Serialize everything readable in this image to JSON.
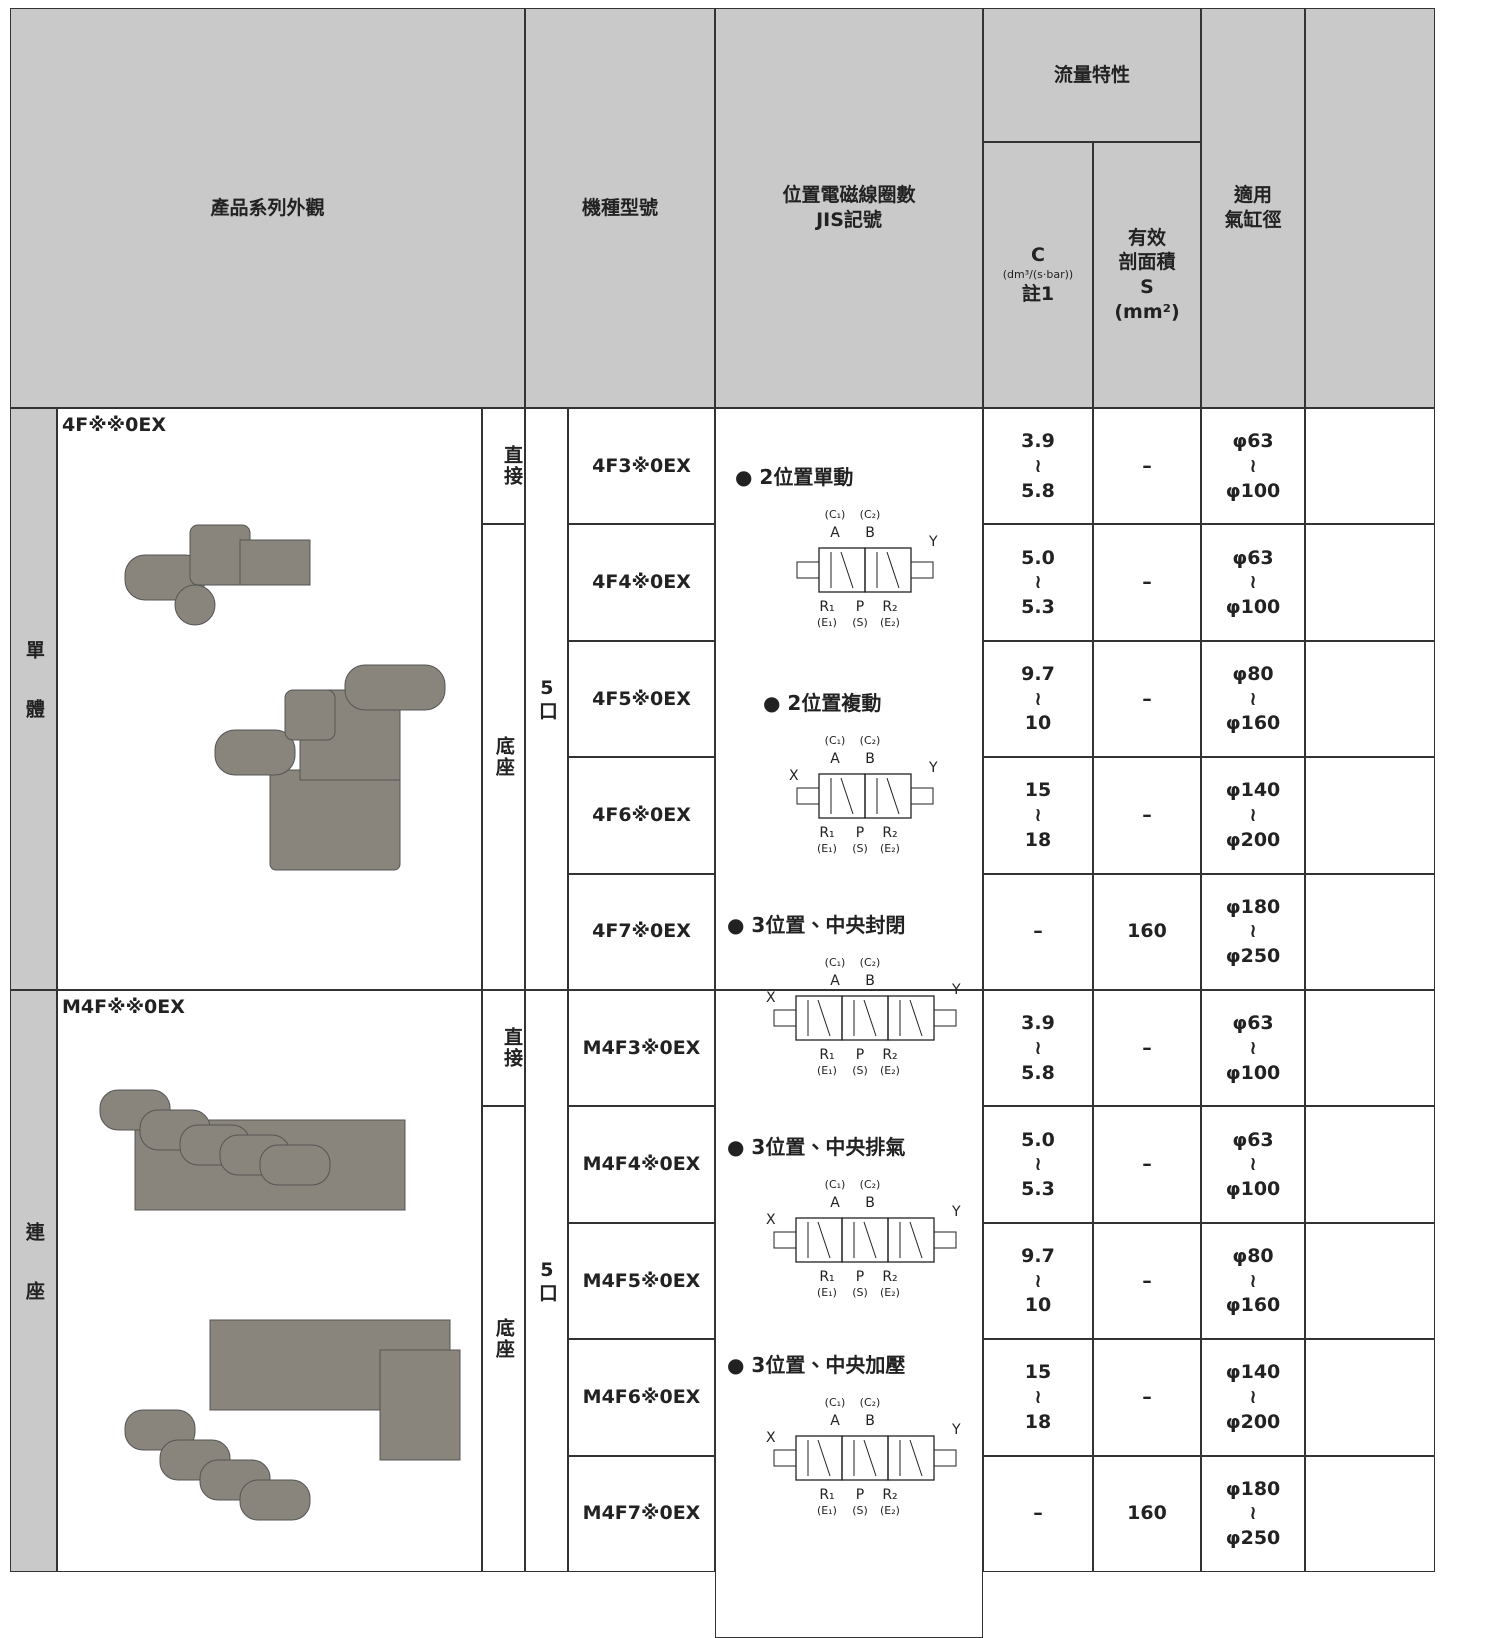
{
  "header": {
    "appearance": "產品系列外觀",
    "model": "機種型號",
    "symbol": [
      "位置電磁線圈數",
      "JIS記號"
    ],
    "flow": "流量特性",
    "c": [
      "C",
      "(dm³/(s·bar))",
      "註1"
    ],
    "s": [
      "有效",
      "剖面積",
      "S",
      "(mm²)"
    ],
    "bore": [
      "適用",
      "氣缸徑"
    ]
  },
  "groups": [
    {
      "side": "單體",
      "series": "4F※※0EX",
      "mounts": [
        "直接",
        "底座"
      ],
      "ports": "5口",
      "rows": [
        {
          "model": "4F3※0EX",
          "c": [
            "3.9",
            "≀",
            "5.8"
          ],
          "s": "–",
          "bore": [
            "φ63",
            "≀",
            "φ100"
          ]
        },
        {
          "model": "4F4※0EX",
          "c": [
            "5.0",
            "≀",
            "5.3"
          ],
          "s": "–",
          "bore": [
            "φ63",
            "≀",
            "φ100"
          ]
        },
        {
          "model": "4F5※0EX",
          "c": [
            "9.7",
            "≀",
            "10"
          ],
          "s": "–",
          "bore": [
            "φ80",
            "≀",
            "φ160"
          ]
        },
        {
          "model": "4F6※0EX",
          "c": [
            "15",
            "≀",
            "18"
          ],
          "s": "–",
          "bore": [
            "φ140",
            "≀",
            "φ200"
          ]
        },
        {
          "model": "4F7※0EX",
          "c": [
            "–"
          ],
          "s": "160",
          "bore": [
            "φ180",
            "≀",
            "φ250"
          ]
        }
      ]
    },
    {
      "side": "連座",
      "series": "M4F※※0EX",
      "mounts": [
        "直接",
        "底座"
      ],
      "ports": "5口",
      "rows": [
        {
          "model": "M4F3※0EX",
          "c": [
            "3.9",
            "≀",
            "5.8"
          ],
          "s": "–",
          "bore": [
            "φ63",
            "≀",
            "φ100"
          ]
        },
        {
          "model": "M4F4※0EX",
          "c": [
            "5.0",
            "≀",
            "5.3"
          ],
          "s": "–",
          "bore": [
            "φ63",
            "≀",
            "φ100"
          ]
        },
        {
          "model": "M4F5※0EX",
          "c": [
            "9.7",
            "≀",
            "10"
          ],
          "s": "–",
          "bore": [
            "φ80",
            "≀",
            "φ160"
          ]
        },
        {
          "model": "M4F6※0EX",
          "c": [
            "15",
            "≀",
            "18"
          ],
          "s": "–",
          "bore": [
            "φ140",
            "≀",
            "φ200"
          ]
        },
        {
          "model": "M4F7※0EX",
          "c": [
            "–"
          ],
          "s": "160",
          "bore": [
            "φ180",
            "≀",
            "φ250"
          ]
        }
      ]
    }
  ],
  "symbols": [
    {
      "title": "● 2位置單動",
      "top": [
        "(C₁)",
        "(C₂)"
      ],
      "ab": [
        "A",
        "B"
      ],
      "bottom": [
        "R₁",
        "P",
        "R₂"
      ],
      "exhaust": [
        "(E₁)",
        "(S)",
        "(E₂)"
      ],
      "y": "Y"
    },
    {
      "title": "● 2位置複動",
      "top": [
        "(C₁)",
        "(C₂)"
      ],
      "ab": [
        "A",
        "B"
      ],
      "bottom": [
        "R₁",
        "P",
        "R₂"
      ],
      "exhaust": [
        "(E₁)",
        "(S)",
        "(E₂)"
      ],
      "x": "X",
      "y": "Y"
    },
    {
      "title": "● 3位置、中央封閉",
      "top": [
        "(C₁)",
        "(C₂)"
      ],
      "ab": [
        "A",
        "B"
      ],
      "bottom": [
        "R₁",
        "P",
        "R₂"
      ],
      "exhaust": [
        "(E₁)",
        "(S)",
        "(E₂)"
      ],
      "x": "X",
      "y": "Y"
    },
    {
      "title": "● 3位置、中央排氣",
      "top": [
        "(C₁)",
        "(C₂)"
      ],
      "ab": [
        "A",
        "B"
      ],
      "bottom": [
        "R₁",
        "P",
        "R₂"
      ],
      "exhaust": [
        "(E₁)",
        "(S)",
        "(E₂)"
      ],
      "x": "X",
      "y": "Y"
    },
    {
      "title": "● 3位置、中央加壓",
      "top": [
        "(C₁)",
        "(C₂)"
      ],
      "ab": [
        "A",
        "B"
      ],
      "bottom": [
        "R₁",
        "P",
        "R₂"
      ],
      "exhaust": [
        "(E₁)",
        "(S)",
        "(E₂)"
      ],
      "x": "X",
      "y": "Y"
    }
  ]
}
